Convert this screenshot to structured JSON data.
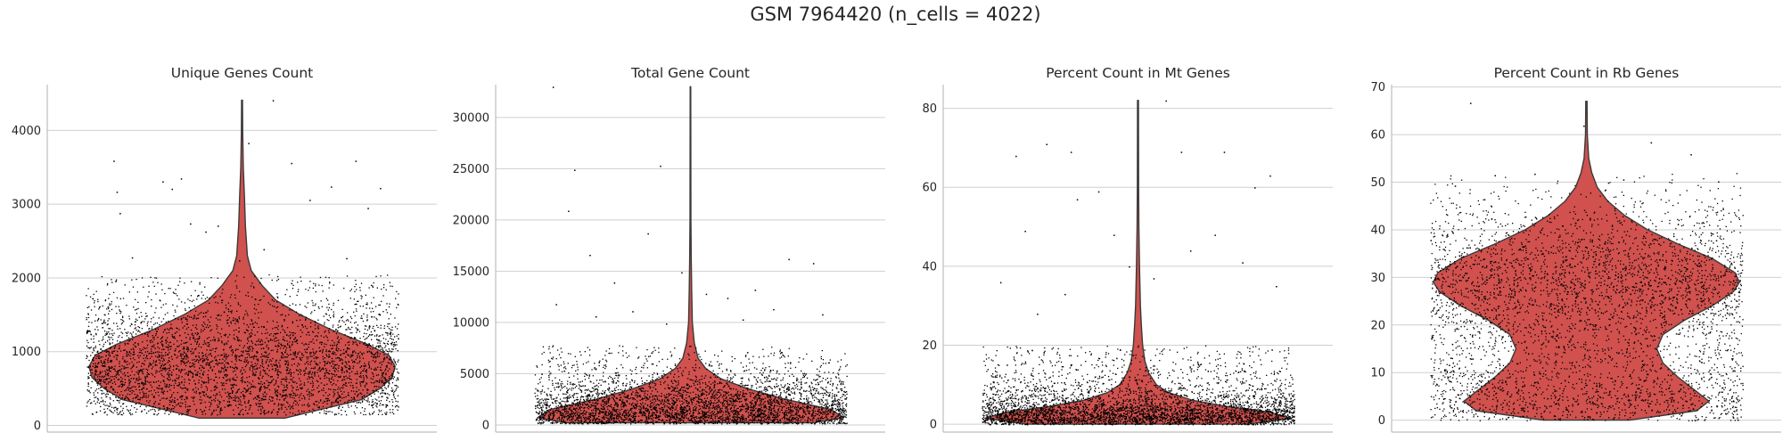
{
  "figure": {
    "suptitle": "GSM 7964420 (n_cells = 4022)"
  },
  "colors": {
    "violin_fill": "#d0514e",
    "violin_edge": "#3a3a3a",
    "grid": "#cfcfcf",
    "axis": "#bdbdbd",
    "text": "#262626",
    "points": "#000000"
  },
  "chart_data": [
    {
      "type": "violin",
      "title": "Unique Genes Count",
      "xlabel": "",
      "ylabel": "",
      "ylim": [
        -90,
        4620
      ],
      "yticks": [
        0,
        1000,
        2000,
        3000,
        4000
      ],
      "ytick_labels": [
        "0",
        "1000",
        "2000",
        "3000",
        "4000"
      ],
      "grid": true,
      "n_points": 4022,
      "density_profile": [
        [
          100,
          0.28
        ],
        [
          200,
          0.48
        ],
        [
          350,
          0.78
        ],
        [
          500,
          0.9
        ],
        [
          650,
          0.98
        ],
        [
          800,
          1.0
        ],
        [
          950,
          0.96
        ],
        [
          1100,
          0.82
        ],
        [
          1300,
          0.58
        ],
        [
          1500,
          0.38
        ],
        [
          1700,
          0.22
        ],
        [
          1900,
          0.13
        ],
        [
          2100,
          0.06
        ],
        [
          2300,
          0.035
        ],
        [
          2700,
          0.022
        ],
        [
          3100,
          0.016
        ],
        [
          3500,
          0.008
        ],
        [
          4000,
          0.004
        ],
        [
          4410,
          0.003
        ]
      ],
      "point_band": [
        150,
        2050
      ],
      "outliers": [
        [
          0.08,
          3590
        ],
        [
          0.09,
          3170
        ],
        [
          0.1,
          2880
        ],
        [
          0.24,
          3310
        ],
        [
          0.27,
          3210
        ],
        [
          0.3,
          3350
        ],
        [
          0.33,
          2740
        ],
        [
          0.38,
          2630
        ],
        [
          0.42,
          2710
        ],
        [
          0.6,
          4410
        ],
        [
          0.66,
          3560
        ],
        [
          0.72,
          3060
        ],
        [
          0.79,
          3240
        ],
        [
          0.87,
          3590
        ],
        [
          0.91,
          2950
        ],
        [
          0.95,
          3220
        ],
        [
          0.14,
          2280
        ],
        [
          0.49,
          2240
        ],
        [
          0.57,
          2390
        ],
        [
          0.84,
          2270
        ],
        [
          0.52,
          3830
        ]
      ]
    },
    {
      "type": "violin",
      "title": "Total Gene Count",
      "xlabel": "",
      "ylabel": "",
      "ylim": [
        -700,
        33200
      ],
      "yticks": [
        0,
        5000,
        10000,
        15000,
        20000,
        25000,
        30000
      ],
      "ytick_labels": [
        "0",
        "5000",
        "10000",
        "15000",
        "20000",
        "25000",
        "30000"
      ],
      "grid": true,
      "n_points": 4022,
      "density_profile": [
        [
          200,
          0.8
        ],
        [
          700,
          1.0
        ],
        [
          1500,
          0.92
        ],
        [
          2500,
          0.62
        ],
        [
          3500,
          0.38
        ],
        [
          4500,
          0.2
        ],
        [
          5500,
          0.1
        ],
        [
          6500,
          0.05
        ],
        [
          8000,
          0.025
        ],
        [
          10000,
          0.012
        ],
        [
          13000,
          0.008
        ],
        [
          16000,
          0.005
        ],
        [
          20000,
          0.003
        ],
        [
          33000,
          0.002
        ]
      ],
      "point_band": [
        150,
        7800
      ],
      "outliers": [
        [
          0.05,
          33000
        ],
        [
          0.12,
          24900
        ],
        [
          0.1,
          20900
        ],
        [
          0.4,
          25300
        ],
        [
          0.36,
          18700
        ],
        [
          0.17,
          16600
        ],
        [
          0.82,
          16200
        ],
        [
          0.9,
          15800
        ],
        [
          0.25,
          13900
        ],
        [
          0.47,
          14900
        ],
        [
          0.71,
          13200
        ],
        [
          0.62,
          12400
        ],
        [
          0.55,
          12800
        ],
        [
          0.06,
          11800
        ],
        [
          0.31,
          11100
        ],
        [
          0.93,
          10800
        ],
        [
          0.77,
          11300
        ],
        [
          0.42,
          9900
        ],
        [
          0.67,
          10300
        ],
        [
          0.19,
          10600
        ]
      ]
    },
    {
      "type": "violin",
      "title": "Percent Count in Mt Genes",
      "xlabel": "",
      "ylabel": "",
      "ylim": [
        -2,
        86
      ],
      "yticks": [
        0,
        20,
        40,
        60,
        80
      ],
      "ytick_labels": [
        "0",
        "20",
        "40",
        "60",
        "80"
      ],
      "grid": true,
      "n_points": 4022,
      "density_profile": [
        [
          0,
          0.72
        ],
        [
          1.5,
          1.0
        ],
        [
          3,
          0.86
        ],
        [
          4.5,
          0.58
        ],
        [
          6,
          0.36
        ],
        [
          8,
          0.2
        ],
        [
          10,
          0.12
        ],
        [
          13,
          0.07
        ],
        [
          16,
          0.045
        ],
        [
          20,
          0.03
        ],
        [
          25,
          0.022
        ],
        [
          30,
          0.016
        ],
        [
          40,
          0.01
        ],
        [
          50,
          0.006
        ],
        [
          60,
          0.004
        ],
        [
          82,
          0.003
        ]
      ],
      "point_band": [
        0,
        20
      ],
      "outliers": [
        [
          0.1,
          68
        ],
        [
          0.2,
          71
        ],
        [
          0.28,
          69
        ],
        [
          0.37,
          59
        ],
        [
          0.3,
          57
        ],
        [
          0.64,
          69
        ],
        [
          0.78,
          69
        ],
        [
          0.75,
          48
        ],
        [
          0.93,
          63
        ],
        [
          0.88,
          60
        ],
        [
          0.13,
          49
        ],
        [
          0.42,
          48
        ],
        [
          0.67,
          44
        ],
        [
          0.47,
          40
        ],
        [
          0.84,
          41
        ],
        [
          0.05,
          36
        ],
        [
          0.55,
          37
        ],
        [
          0.26,
          33
        ],
        [
          0.95,
          35
        ],
        [
          0.17,
          28
        ],
        [
          0.59,
          82
        ]
      ]
    },
    {
      "type": "violin",
      "title": "Percent Count in Rb Genes",
      "xlabel": "",
      "ylabel": "",
      "ylim": [
        -2.5,
        70.5
      ],
      "yticks": [
        0,
        10,
        20,
        30,
        40,
        50,
        60,
        70
      ],
      "ytick_labels": [
        "0",
        "10",
        "20",
        "30",
        "40",
        "50",
        "60",
        "70"
      ],
      "grid": true,
      "n_points": 4022,
      "density_profile": [
        [
          0,
          0.28
        ],
        [
          2,
          0.72
        ],
        [
          4,
          0.8
        ],
        [
          6,
          0.72
        ],
        [
          9,
          0.6
        ],
        [
          12,
          0.5
        ],
        [
          15,
          0.46
        ],
        [
          18,
          0.5
        ],
        [
          21,
          0.64
        ],
        [
          24,
          0.82
        ],
        [
          27,
          0.96
        ],
        [
          29,
          1.0
        ],
        [
          31,
          0.97
        ],
        [
          34,
          0.82
        ],
        [
          37,
          0.6
        ],
        [
          40,
          0.4
        ],
        [
          43,
          0.25
        ],
        [
          46,
          0.14
        ],
        [
          49,
          0.07
        ],
        [
          52,
          0.035
        ],
        [
          55,
          0.015
        ],
        [
          60,
          0.006
        ],
        [
          67,
          0.004
        ]
      ],
      "point_band": [
        0,
        52
      ],
      "outliers": [
        [
          0.12,
          66.7
        ],
        [
          0.49,
          61.9
        ],
        [
          0.71,
          58.4
        ],
        [
          0.84,
          55.9
        ],
        [
          0.2,
          51.5
        ],
        [
          0.93,
          50.2
        ],
        [
          0.07,
          49.3
        ],
        [
          0.33,
          51.8
        ],
        [
          0.62,
          50.6
        ]
      ]
    }
  ]
}
